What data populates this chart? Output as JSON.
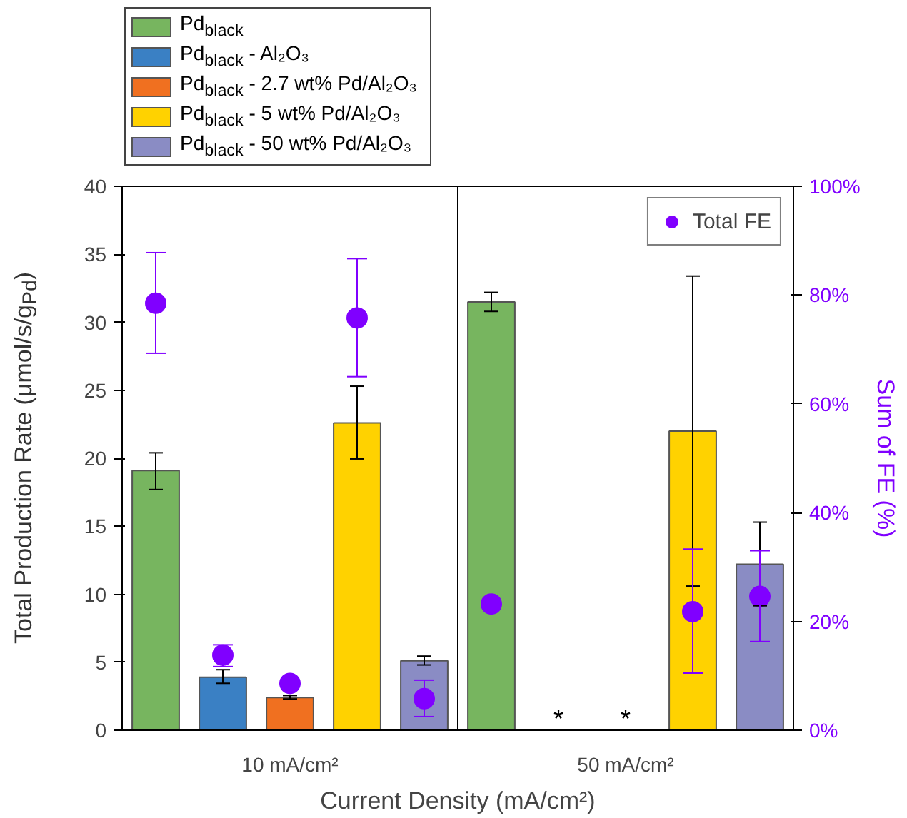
{
  "chart_data": {
    "type": "bar",
    "xlabel": "Current Density (mA/cm²)",
    "ylabel": "Total Production Rate (μmol/s/g$_{Pd}$)",
    "y2label": "Sum of FE (%)",
    "categories": [
      "10 mA/cm²",
      "50 mA/cm²"
    ],
    "ylim": [
      0,
      40
    ],
    "yticks": [
      0,
      5,
      10,
      15,
      20,
      25,
      30,
      35,
      40
    ],
    "y2lim": [
      0,
      100
    ],
    "y2ticks": [
      {
        "value": 0,
        "label": "0%"
      },
      {
        "value": 20,
        "label": "20%"
      },
      {
        "value": 40,
        "label": "40%"
      },
      {
        "value": 60,
        "label": "60%"
      },
      {
        "value": 80,
        "label": "80%"
      },
      {
        "value": 100,
        "label": "100%"
      }
    ],
    "grid": false,
    "legend": "top left",
    "series": [
      {
        "name": "Pd$_{black}$",
        "color": "#77b55f",
        "values": [
          19.1,
          31.5
        ],
        "errors": [
          [
            17.7,
            20.4
          ],
          [
            30.8,
            32.2
          ]
        ]
      },
      {
        "name": "Pd$_{black}$ - Al₂O₃",
        "color": "#3a80c4",
        "values": [
          3.9,
          null
        ],
        "errors": [
          [
            3.45,
            4.45
          ],
          null
        ],
        "value_labels": [
          null,
          "*"
        ]
      },
      {
        "name": "Pd$_{black}$ - 2.7 wt% Pd/Al₂O₃",
        "color": "#f07020",
        "values": [
          2.4,
          null
        ],
        "errors": [
          [
            2.3,
            2.55
          ],
          null
        ],
        "value_labels": [
          null,
          "*"
        ]
      },
      {
        "name": "Pd$_{black}$ - 5 wt% Pd/Al₂O₃",
        "color": "#ffd200",
        "values": [
          22.6,
          22.0
        ],
        "errors": [
          [
            19.95,
            25.3
          ],
          [
            10.6,
            33.4
          ]
        ]
      },
      {
        "name": "Pd$_{black}$ - 50 wt% Pd/Al₂O₃",
        "color": "#8a8cc4",
        "values": [
          5.1,
          12.2
        ],
        "errors": [
          [
            4.8,
            5.45
          ],
          [
            9.15,
            15.3
          ]
        ]
      },
      {
        "name": "Total FE",
        "type": "scatter",
        "axis": "y2",
        "marker": "circle",
        "color": "#8000ff",
        "x": [
          "10 mA/cm²",
          "10 mA/cm²",
          "10 mA/cm²",
          "10 mA/cm²",
          "10 mA/cm²",
          "50 mA/cm²",
          "50 mA/cm²",
          "50 mA/cm²",
          "50 mA/cm²",
          "50 mA/cm²"
        ],
        "values": [
          78.5,
          13.8,
          8.6,
          75.8,
          5.8,
          23.2,
          null,
          null,
          21.8,
          24.6
        ],
        "errors": [
          [
            69.3,
            87.8
          ],
          [
            11.7,
            15.7
          ],
          null,
          [
            65,
            86.7
          ],
          [
            2.5,
            9.2
          ],
          null,
          null,
          null,
          [
            10.5,
            33.3
          ],
          [
            16.3,
            33
          ]
        ]
      }
    ]
  }
}
